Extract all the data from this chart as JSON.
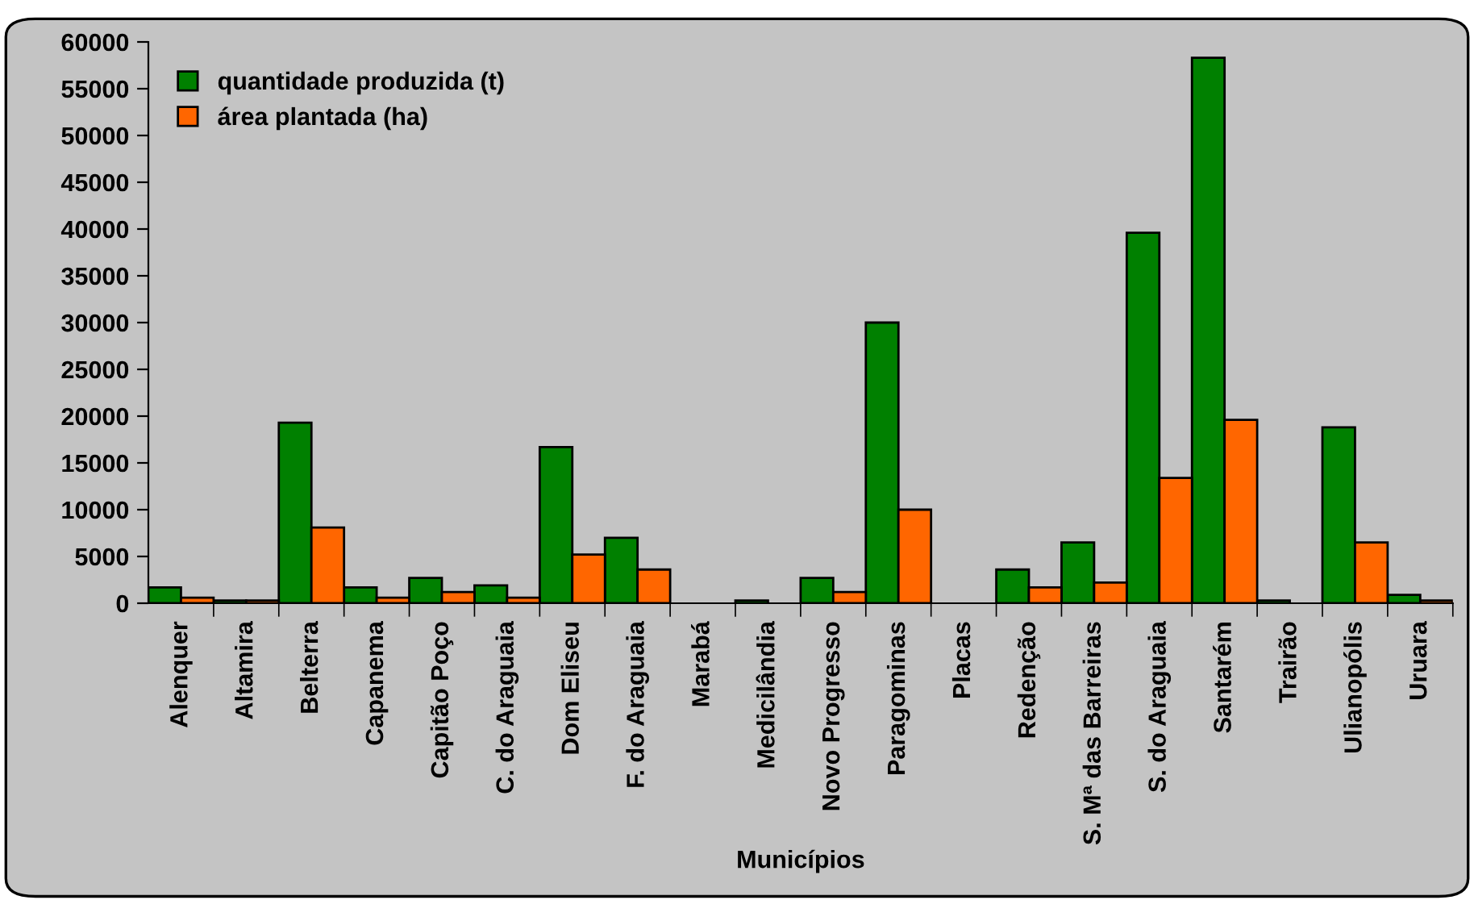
{
  "chart_data": {
    "type": "bar",
    "xlabel": "Municípios",
    "categories": [
      "Alenquer",
      "Altamira",
      "Belterra",
      "Capanema",
      "Capitão Poço",
      "C. do Araguaia",
      "Dom Eliseu",
      "F. do Araguaia",
      "Marabá",
      "Medicilândia",
      "Novo Progresso",
      "Paragominas",
      "Placas",
      "Redenção",
      "S. Mª das Barreiras",
      "S. do Araguaia",
      "Santarém",
      "Trairão",
      "Ulianopólis",
      "Uruara"
    ],
    "series": [
      {
        "name": "quantidade produzida (t)",
        "color": "#008000",
        "values": [
          1700,
          300,
          19300,
          1700,
          2700,
          1900,
          16700,
          7000,
          0,
          300,
          2700,
          30000,
          0,
          3600,
          6500,
          39600,
          58300,
          300,
          18800,
          900
        ]
      },
      {
        "name": "área plantada (ha)",
        "color": "#ff6600",
        "values": [
          600,
          300,
          8100,
          600,
          1200,
          600,
          5200,
          3600,
          0,
          0,
          1200,
          10000,
          0,
          1700,
          2200,
          13400,
          19600,
          0,
          6500,
          300
        ]
      }
    ],
    "ylim": [
      0,
      60000
    ],
    "yticks": [
      0,
      5000,
      10000,
      15000,
      20000,
      25000,
      30000,
      35000,
      40000,
      45000,
      50000,
      55000,
      60000
    ],
    "grid": false,
    "legend": "top left"
  }
}
